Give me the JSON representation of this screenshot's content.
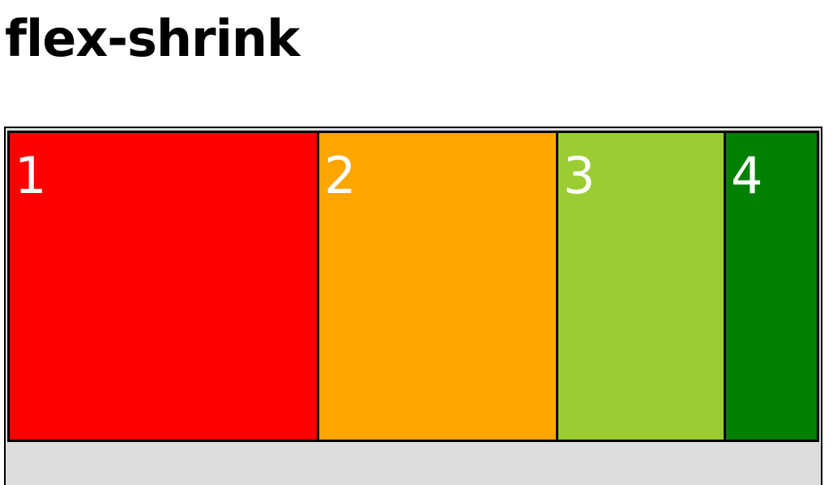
{
  "page": {
    "title": "flex-shrink"
  },
  "flex_container": {
    "background_color": "#dddddd",
    "items": [
      {
        "label": "1",
        "color": "#ff0000"
      },
      {
        "label": "2",
        "color": "#ffa500"
      },
      {
        "label": "3",
        "color": "#9acd32"
      },
      {
        "label": "4",
        "color": "#008000"
      }
    ]
  }
}
